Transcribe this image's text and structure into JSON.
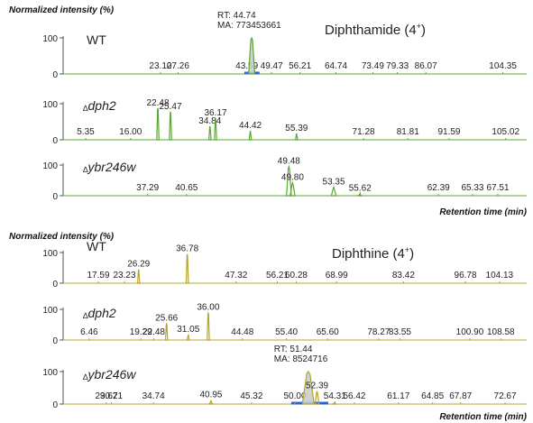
{
  "chart_data": [
    {
      "type": "line",
      "title": "Diphthamide (4⁺)",
      "section_ylabel": "Normalized intensity (%)",
      "xlabel": "Retention time (min)",
      "color": "#5aa832",
      "panels": [
        {
          "strain": "WT",
          "italic": false,
          "prefix": "",
          "yticks": [
            "100",
            "0"
          ],
          "ylim": [
            0,
            100
          ],
          "xlim": [
            0,
            110
          ],
          "rt_note": [
            "RT: 44.74",
            "MA: 773453661"
          ],
          "marker_range": [
            43.0,
            46.6
          ],
          "peaks": [
            {
              "rt": 23.1,
              "int": 3,
              "label": "23.10"
            },
            {
              "rt": 27.26,
              "int": 3,
              "label": "27.26"
            },
            {
              "rt": 43.59,
              "int": 5,
              "label": "43.59"
            },
            {
              "rt": 44.74,
              "int": 100,
              "label": "",
              "wide": 1.6
            },
            {
              "rt": 49.47,
              "int": 4,
              "label": "49.47"
            },
            {
              "rt": 56.21,
              "int": 3,
              "label": "56.21"
            },
            {
              "rt": 64.74,
              "int": 3,
              "label": "64.74"
            },
            {
              "rt": 73.49,
              "int": 3,
              "label": "73.49"
            },
            {
              "rt": 79.33,
              "int": 3,
              "label": "79.33"
            },
            {
              "rt": 86.07,
              "int": 3,
              "label": "86.07"
            },
            {
              "rt": 104.35,
              "int": 3,
              "label": "104.35"
            }
          ]
        },
        {
          "strain": "dph2",
          "italic": true,
          "prefix": "∆",
          "yticks": [
            "100",
            "0"
          ],
          "ylim": [
            0,
            100
          ],
          "xlim": [
            0,
            110
          ],
          "rt_note": [],
          "marker_range": [],
          "peaks": [
            {
              "rt": 5.35,
              "int": 3,
              "label": "5.35"
            },
            {
              "rt": 16.0,
              "int": 3,
              "label": "16.00"
            },
            {
              "rt": 22.48,
              "int": 88,
              "label": "22.48"
            },
            {
              "rt": 25.47,
              "int": 78,
              "label": "25.47"
            },
            {
              "rt": 34.84,
              "int": 38,
              "label": "34.84"
            },
            {
              "rt": 36.17,
              "int": 60,
              "label": "36.17"
            },
            {
              "rt": 44.42,
              "int": 25,
              "label": "44.42"
            },
            {
              "rt": 55.39,
              "int": 18,
              "label": "55.39"
            },
            {
              "rt": 71.28,
              "int": 3,
              "label": "71.28"
            },
            {
              "rt": 81.81,
              "int": 3,
              "label": "81.81"
            },
            {
              "rt": 91.59,
              "int": 3,
              "label": "91.59"
            },
            {
              "rt": 105.02,
              "int": 3,
              "label": "105.02"
            }
          ]
        },
        {
          "strain": "ybr246w",
          "italic": true,
          "prefix": "∆",
          "yticks": [
            "100",
            "0"
          ],
          "ylim": [
            0,
            100
          ],
          "xlim": [
            30,
            70
          ],
          "rt_note": [],
          "marker_range": [],
          "peaks": [
            {
              "rt": 37.29,
              "int": 3,
              "label": "37.29"
            },
            {
              "rt": 40.65,
              "int": 3,
              "label": "40.65"
            },
            {
              "rt": 49.48,
              "int": 95,
              "label": "49.48"
            },
            {
              "rt": 49.8,
              "int": 42,
              "label": "49.80"
            },
            {
              "rt": 53.35,
              "int": 28,
              "label": "53.35"
            },
            {
              "rt": 55.62,
              "int": 8,
              "label": "55.62"
            },
            {
              "rt": 62.39,
              "int": 3,
              "label": "62.39"
            },
            {
              "rt": 65.33,
              "int": 3,
              "label": "65.33"
            },
            {
              "rt": 67.51,
              "int": 3,
              "label": "67.51"
            }
          ]
        }
      ]
    },
    {
      "type": "line",
      "title": "Diphthine (4⁺)",
      "section_ylabel": "Normalized intensity (%)",
      "xlabel": "Retention time (min)",
      "color": "#b6a42c",
      "panels": [
        {
          "strain": "WT",
          "italic": false,
          "prefix": "",
          "yticks": [
            "100",
            "0"
          ],
          "ylim": [
            0,
            100
          ],
          "xlim": [
            10,
            110
          ],
          "rt_note": [],
          "marker_range": [],
          "peaks": [
            {
              "rt": 17.59,
              "int": 3,
              "label": "17.59"
            },
            {
              "rt": 23.23,
              "int": 3,
              "label": "23.23"
            },
            {
              "rt": 26.29,
              "int": 45,
              "label": "26.29"
            },
            {
              "rt": 36.78,
              "int": 95,
              "label": "36.78"
            },
            {
              "rt": 47.32,
              "int": 3,
              "label": "47.32"
            },
            {
              "rt": 56.21,
              "int": 3,
              "label": "56.21"
            },
            {
              "rt": 60.28,
              "int": 3,
              "label": "60.28"
            },
            {
              "rt": 68.99,
              "int": 3,
              "label": "68.99"
            },
            {
              "rt": 83.42,
              "int": 3,
              "label": "83.42"
            },
            {
              "rt": 96.78,
              "int": 3,
              "label": "96.78"
            },
            {
              "rt": 104.13,
              "int": 3,
              "label": "104.13"
            }
          ]
        },
        {
          "strain": "dph2",
          "italic": true,
          "prefix": "∆",
          "yticks": [
            "100",
            "0"
          ],
          "ylim": [
            0,
            100
          ],
          "xlim": [
            0,
            115
          ],
          "rt_note": [],
          "marker_range": [],
          "peaks": [
            {
              "rt": 6.46,
              "int": 3,
              "label": "6.46"
            },
            {
              "rt": 19.29,
              "int": 3,
              "label": "19.29"
            },
            {
              "rt": 22.48,
              "int": 4,
              "label": "22.48"
            },
            {
              "rt": 25.66,
              "int": 55,
              "label": "25.66"
            },
            {
              "rt": 31.05,
              "int": 18,
              "label": "31.05"
            },
            {
              "rt": 36.0,
              "int": 90,
              "label": "36.00"
            },
            {
              "rt": 44.48,
              "int": 3,
              "label": "44.48"
            },
            {
              "rt": 55.4,
              "int": 3,
              "label": "55.40"
            },
            {
              "rt": 65.6,
              "int": 3,
              "label": "65.60"
            },
            {
              "rt": 78.27,
              "int": 3,
              "label": "78.27"
            },
            {
              "rt": 83.55,
              "int": 3,
              "label": "83.55"
            },
            {
              "rt": 100.9,
              "int": 3,
              "label": "100.90"
            },
            {
              "rt": 108.58,
              "int": 3,
              "label": "108.58"
            }
          ]
        },
        {
          "strain": "ybr246w",
          "italic": true,
          "prefix": "∆",
          "yticks": [
            "100",
            "0"
          ],
          "ylim": [
            0,
            100
          ],
          "xlim": [
            25,
            75
          ],
          "rt_note": [
            "RT: 51.44",
            "MA: 8524716"
          ],
          "marker_range": [
            49.6,
            53.6
          ],
          "peaks": [
            {
              "rt": 29.67,
              "int": 3,
              "label": "29.67"
            },
            {
              "rt": 30.21,
              "int": 3,
              "label": "30.21"
            },
            {
              "rt": 34.74,
              "int": 3,
              "label": "34.74"
            },
            {
              "rt": 40.95,
              "int": 12,
              "label": "40.95"
            },
            {
              "rt": 45.32,
              "int": 3,
              "label": "45.32"
            },
            {
              "rt": 50.0,
              "int": 3,
              "label": "50.00"
            },
            {
              "rt": 51.44,
              "int": 100,
              "label": "",
              "wide": 1.4
            },
            {
              "rt": 52.39,
              "int": 40,
              "label": "52.39"
            },
            {
              "rt": 54.31,
              "int": 8,
              "label": "54.31"
            },
            {
              "rt": 56.42,
              "int": 3,
              "label": "56.42"
            },
            {
              "rt": 61.17,
              "int": 3,
              "label": "61.17"
            },
            {
              "rt": 64.85,
              "int": 3,
              "label": "64.85"
            },
            {
              "rt": 67.87,
              "int": 3,
              "label": "67.87"
            },
            {
              "rt": 72.67,
              "int": 3,
              "label": "72.67"
            }
          ]
        }
      ]
    }
  ]
}
